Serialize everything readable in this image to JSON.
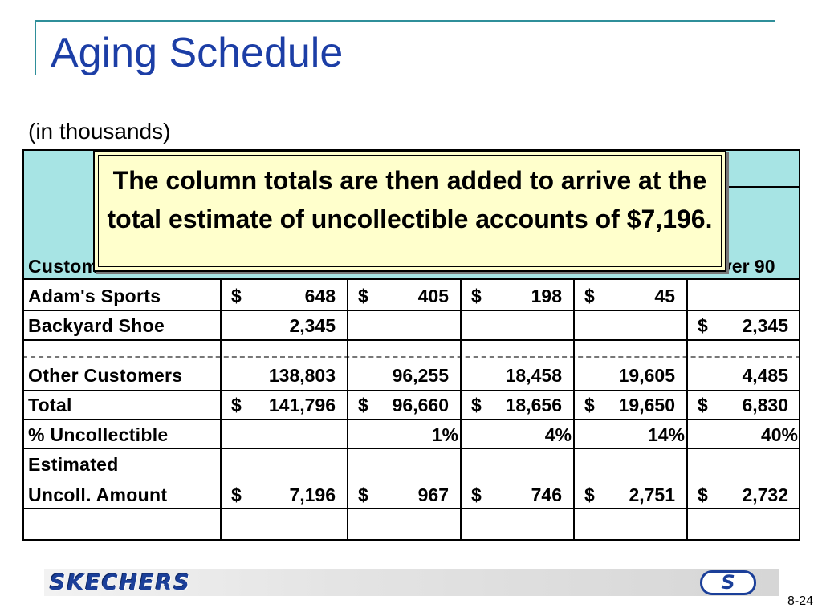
{
  "slide": {
    "title": "Aging Schedule",
    "subtitle": "(in thousands)",
    "page_number": "8-24"
  },
  "table": {
    "visible_header": {
      "left": "Custom",
      "right": "ver 90"
    },
    "rows": [
      {
        "label": "Adam's Sports",
        "cells": [
          [
            "$",
            "648"
          ],
          [
            "$",
            "405"
          ],
          [
            "$",
            "198"
          ],
          [
            "$",
            "45"
          ],
          [
            "",
            ""
          ]
        ]
      },
      {
        "label": "Backyard Shoe",
        "cells": [
          [
            "",
            "2,345"
          ],
          [
            "",
            ""
          ],
          [
            "",
            ""
          ],
          [
            "",
            ""
          ],
          [
            "$",
            "2,345"
          ]
        ]
      },
      {
        "label": "Other Customers",
        "cells": [
          [
            "",
            "138,803"
          ],
          [
            "",
            "96,255"
          ],
          [
            "",
            "18,458"
          ],
          [
            "",
            "19,605"
          ],
          [
            "",
            "4,485"
          ]
        ]
      },
      {
        "label": "Total",
        "cells": [
          [
            "$",
            "141,796"
          ],
          [
            "$",
            "96,660"
          ],
          [
            "$",
            "18,656"
          ],
          [
            "$",
            "19,650"
          ],
          [
            "$",
            "6,830"
          ]
        ]
      },
      {
        "label": "% Uncollectible",
        "cells": [
          [
            "",
            ""
          ],
          [
            "",
            "1%"
          ],
          [
            "",
            "4%"
          ],
          [
            "",
            "14%"
          ],
          [
            "",
            "40%"
          ]
        ]
      },
      {
        "label_lines": [
          "Estimated",
          "Uncoll. Amount"
        ],
        "cells": [
          [
            "$",
            "7,196"
          ],
          [
            "$",
            "967"
          ],
          [
            "$",
            "746"
          ],
          [
            "$",
            "2,751"
          ],
          [
            "$",
            "2,732"
          ]
        ]
      }
    ]
  },
  "callout": {
    "text": "The column totals are then added to arrive at the total estimate of uncollectible accounts of $7,196."
  },
  "footer": {
    "logo_text": "SKECHERS",
    "s_logo_text": "S"
  }
}
